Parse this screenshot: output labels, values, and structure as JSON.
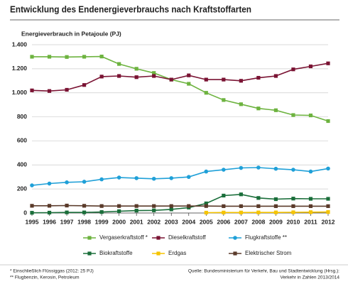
{
  "chart_data": {
    "type": "line",
    "title": "Entwicklung des Endenergieverbrauchs nach Kraftstoffarten",
    "y_label": "Energieverbrauch in Petajoule (PJ)",
    "categories": [
      "1995",
      "1996",
      "1997",
      "1998",
      "1999",
      "2000",
      "2001",
      "2002",
      "2003",
      "2004",
      "2005",
      "2006",
      "2007",
      "2008",
      "2009",
      "2010",
      "2011",
      "2012"
    ],
    "ylim": [
      0,
      1400
    ],
    "yticks": [
      0,
      200,
      400,
      600,
      800,
      {
        "value": 1000,
        "label": "1.000"
      },
      {
        "value": 1200,
        "label": "1.200"
      },
      {
        "value": 1400,
        "label": "1.400"
      }
    ],
    "grid": true,
    "legend": "bottom",
    "series": [
      {
        "name": "Vergaserkraftstoff *",
        "color": "#6db33f",
        "marker": "square",
        "values": [
          1300,
          1300,
          1298,
          1300,
          1302,
          1240,
          1200,
          1165,
          1110,
          1075,
          1000,
          940,
          905,
          870,
          855,
          815,
          812,
          765
        ]
      },
      {
        "name": "Dieselkraftstoff",
        "color": "#7a1333",
        "marker": "square",
        "values": [
          1020,
          1015,
          1025,
          1065,
          1135,
          1140,
          1130,
          1140,
          1110,
          1145,
          1110,
          1110,
          1100,
          1125,
          1140,
          1195,
          1220,
          1245
        ]
      },
      {
        "name": "Flugkraftstoffe **",
        "color": "#1fa0d8",
        "marker": "circle",
        "values": [
          230,
          245,
          255,
          260,
          280,
          295,
          290,
          285,
          290,
          300,
          345,
          360,
          375,
          378,
          368,
          360,
          345,
          370
        ]
      },
      {
        "name": "Biokraftstoffe",
        "color": "#1a6e3a",
        "marker": "square",
        "values": [
          2,
          3,
          5,
          5,
          8,
          15,
          20,
          22,
          30,
          45,
          80,
          145,
          155,
          125,
          115,
          120,
          118,
          118
        ]
      },
      {
        "name": "Erdgas",
        "color": "#f5c400",
        "marker": "square",
        "values": [
          null,
          null,
          null,
          null,
          null,
          null,
          null,
          null,
          null,
          null,
          3,
          4,
          4,
          5,
          5,
          6,
          7,
          8
        ]
      },
      {
        "name": "Elektrischer Strom",
        "color": "#5a3a2a",
        "marker": "square",
        "values": [
          60,
          60,
          62,
          60,
          58,
          58,
          58,
          58,
          58,
          58,
          58,
          57,
          57,
          57,
          57,
          57,
          57,
          57
        ]
      }
    ],
    "footnotes": [
      "* Einschließlich Flüssiggas (2012: 25 PJ)",
      "** Flugbenzin, Kerosin, Petroleum"
    ],
    "source": [
      "Quelle: Bundesministerium für Verkehr, Bau und Stadtentwicklung (Hrsg.):",
      "Verkehr in Zahlen 2013/2014"
    ]
  }
}
